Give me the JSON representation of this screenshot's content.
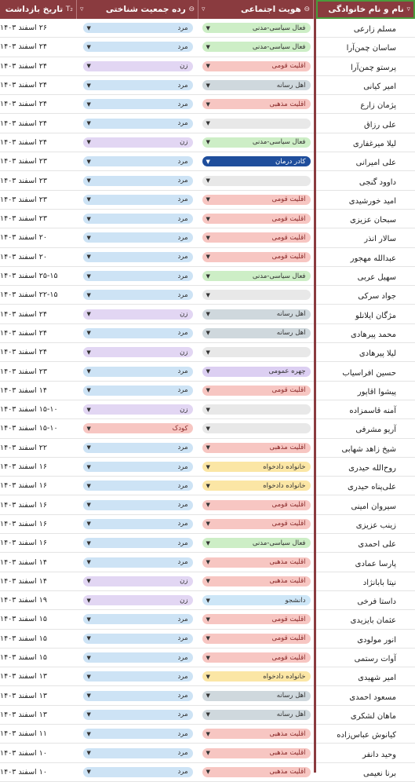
{
  "columns": {
    "name": {
      "label": "نام و نام خانوادگی",
      "icon": "filter-icon"
    },
    "social": {
      "label": "هویت اجتماعی",
      "icon": "option-icon"
    },
    "demographic": {
      "label": "رده جمعیت شناختی",
      "icon": "option-icon"
    },
    "date": {
      "label": "تاریخ بازداشت",
      "icon": "text-type-icon"
    }
  },
  "tag_colors": {
    "فعال سیاسی-مدنی": "#cdeec6",
    "اقلیت قومی": "#f7c6c2",
    "اهل رسانه": "#cfd8dd",
    "اقلیت مذهبی": "#f7c6c2",
    "کادر درمان": "#1f4e9c",
    "چهره عمومی": "#dccff2",
    "خانواده دادخواه": "#fbe6a5",
    "دانشجو": "#cde6f7",
    "": "#e8e8e8",
    "مرد": "#cde3f5",
    "زن": "#e2d6f3",
    "کودک": "#f7c6c2"
  },
  "rows": [
    {
      "name": "مسلم زارعی",
      "social": "فعال سیاسی-مدنی",
      "demographic": "مرد",
      "date": "۲۶ اسفند ۱۴۰۳"
    },
    {
      "name": "ساسان چمن‌آرا",
      "social": "فعال سیاسی-مدنی",
      "demographic": "مرد",
      "date": "۲۴ اسفند ۱۴۰۳"
    },
    {
      "name": "پرستو چمن‌آرا",
      "social": "اقلیت قومی",
      "demographic": "زن",
      "date": "۲۴ اسفند ۱۴۰۳"
    },
    {
      "name": "امیر کیانی",
      "social": "اهل رسانه",
      "demographic": "مرد",
      "date": "۲۴ اسفند ۱۴۰۳"
    },
    {
      "name": "پژمان زارع",
      "social": "اقلیت مذهبی",
      "demographic": "مرد",
      "date": "۲۴ اسفند ۱۴۰۳"
    },
    {
      "name": "علی رزاق",
      "social": "",
      "demographic": "مرد",
      "date": "۲۴ اسفند ۱۴۰۳"
    },
    {
      "name": "لیلا میرغفاری",
      "social": "فعال سیاسی-مدنی",
      "demographic": "زن",
      "date": "۲۴ اسفند ۱۴۰۳"
    },
    {
      "name": "علی امیرانی",
      "social": "کادر درمان",
      "demographic": "مرد",
      "date": "۲۳ اسفند ۱۴۰۳"
    },
    {
      "name": "داوود گنجی",
      "social": "",
      "demographic": "مرد",
      "date": "۲۳ اسفند ۱۴۰۳"
    },
    {
      "name": "امید خورشیدی",
      "social": "اقلیت قومی",
      "demographic": "مرد",
      "date": "۲۳ اسفند ۱۴۰۳"
    },
    {
      "name": "سبحان عزیزی",
      "social": "اقلیت قومی",
      "demographic": "مرد",
      "date": "۲۳ اسفند ۱۴۰۳"
    },
    {
      "name": "سالار انذر",
      "social": "اقلیت قومی",
      "demographic": "مرد",
      "date": "۲۰ اسفند ۱۴۰۳"
    },
    {
      "name": "عبدالله مهجور",
      "social": "اقلیت قومی",
      "demographic": "مرد",
      "date": "۲۰ اسفند ۱۴۰۳"
    },
    {
      "name": "سهیل عربی",
      "social": "فعال سیاسی-مدنی",
      "demographic": "مرد",
      "date": "۲۵-۱۵ اسفند ۱۴۰۳"
    },
    {
      "name": "جواد سرکی",
      "social": "",
      "demographic": "مرد",
      "date": "۲۲-۱۵ اسفند ۱۴۰۳"
    },
    {
      "name": "مژگان ایلانلو",
      "social": "اهل رسانه",
      "demographic": "زن",
      "date": "۲۴ اسفند ۱۴۰۳"
    },
    {
      "name": "محمد پیرهادی",
      "social": "اهل رسانه",
      "demographic": "مرد",
      "date": "۲۴ اسفند ۱۴۰۳"
    },
    {
      "name": "لیلا پیرهادی",
      "social": "",
      "demographic": "زن",
      "date": "۲۴ اسفند ۱۴۰۳"
    },
    {
      "name": "حسین افراسیاب",
      "social": "چهره عمومی",
      "demographic": "مرد",
      "date": "۲۳ اسفند ۱۴۰۳"
    },
    {
      "name": "پیشوا اقاپور",
      "social": "اقلیت قومی",
      "demographic": "مرد",
      "date": "۱۴ اسفند ۱۴۰۳"
    },
    {
      "name": "آمنه قاسمزاده",
      "social": "",
      "demographic": "زن",
      "date": "۱۵-۱۰ اسفند ۱۴۰۳"
    },
    {
      "name": "آریو مشرفی",
      "social": "",
      "demographic": "کودک",
      "date": "۱۵-۱۰ اسفند ۱۴۰۳"
    },
    {
      "name": "شیخ زاهد شهابی",
      "social": "اقلیت مذهبی",
      "demographic": "مرد",
      "date": "۲۲ اسفند ۱۴۰۳"
    },
    {
      "name": "روح‌الله حیدری",
      "social": "خانواده دادخواه",
      "demographic": "مرد",
      "date": "۱۶ اسفند ۱۴۰۳"
    },
    {
      "name": "علی‌پناه حیدری",
      "social": "خانواده دادخواه",
      "demographic": "مرد",
      "date": "۱۶ اسفند ۱۴۰۳"
    },
    {
      "name": "سیروان امینی",
      "social": "اقلیت قومی",
      "demographic": "مرد",
      "date": "۱۶ اسفند ۱۴۰۳"
    },
    {
      "name": "زینب عزیزی",
      "social": "اقلیت قومی",
      "demographic": "مرد",
      "date": "۱۶ اسفند ۱۴۰۳"
    },
    {
      "name": "علی احمدی",
      "social": "فعال سیاسی-مدنی",
      "demographic": "مرد",
      "date": "۱۶ اسفند ۱۴۰۳"
    },
    {
      "name": "پارسا عمادی",
      "social": "اقلیت مذهبی",
      "demographic": "مرد",
      "date": "۱۴ اسفند ۱۴۰۳"
    },
    {
      "name": "نیتا بابانژاد",
      "social": "اقلیت مذهبی",
      "demographic": "زن",
      "date": "۱۴ اسفند ۱۴۰۳"
    },
    {
      "name": "داستا فرخی",
      "social": "دانشجو",
      "demographic": "زن",
      "date": "۱۹ اسفند ۱۴۰۳"
    },
    {
      "name": "عثمان بایزیدی",
      "social": "اقلیت قومی",
      "demographic": "مرد",
      "date": "۱۵ اسفند ۱۴۰۳"
    },
    {
      "name": "انور مولودی",
      "social": "اقلیت قومی",
      "demographic": "مرد",
      "date": "۱۵ اسفند ۱۴۰۳"
    },
    {
      "name": "آوات رستمی",
      "social": "اقلیت قومی",
      "demographic": "مرد",
      "date": "۱۵ اسفند ۱۴۰۳"
    },
    {
      "name": "امیر شهیدی",
      "social": "خانواده دادخواه",
      "demographic": "مرد",
      "date": "۱۳ اسفند ۱۴۰۳"
    },
    {
      "name": "مسعود احمدی",
      "social": "اهل رسانه",
      "demographic": "مرد",
      "date": "۱۳ اسفند ۱۴۰۳"
    },
    {
      "name": "ماهان لشکری",
      "social": "اهل رسانه",
      "demographic": "مرد",
      "date": "۱۳ اسفند ۱۴۰۳"
    },
    {
      "name": "کیانوش عباس‌زاده",
      "social": "اقلیت مذهبی",
      "demographic": "مرد",
      "date": "۱۱ اسفند ۱۴۰۳"
    },
    {
      "name": "وحید دانفر",
      "social": "اقلیت مذهبی",
      "demographic": "مرد",
      "date": "۱۰ اسفند ۱۴۰۳"
    },
    {
      "name": "برنا نعیمی",
      "social": "اقلیت مذهبی",
      "demographic": "مرد",
      "date": "۱۰ اسفند ۱۴۰۳"
    }
  ]
}
